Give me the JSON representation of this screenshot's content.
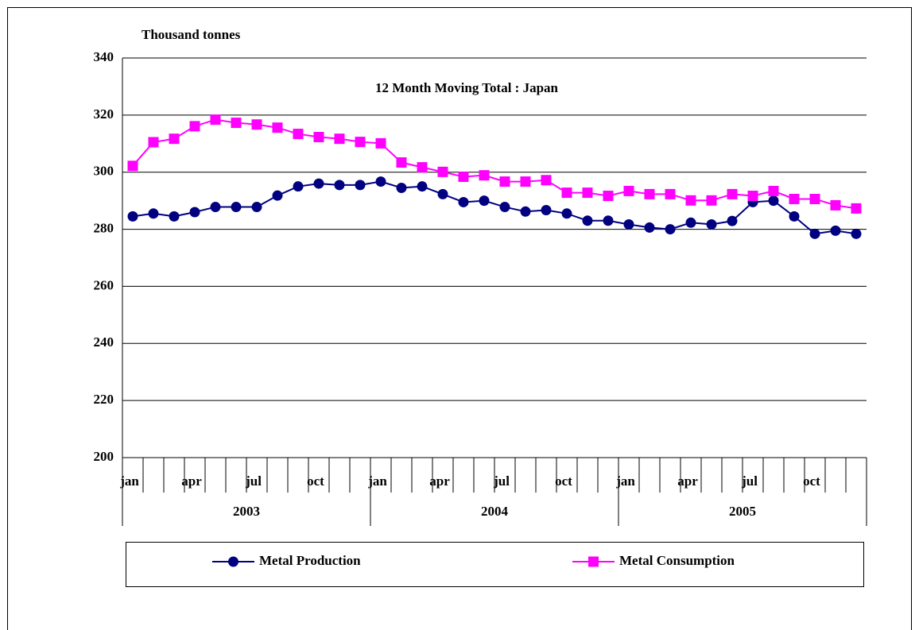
{
  "chart_data": {
    "type": "line",
    "title": "12 Month Moving Total : Japan",
    "y_label": "Thousand tonnes",
    "categories": [
      "jan",
      null,
      null,
      "apr",
      null,
      null,
      "jul",
      null,
      null,
      "oct",
      null,
      null,
      "jan",
      null,
      null,
      "apr",
      null,
      null,
      "jul",
      null,
      null,
      "oct",
      null,
      null,
      "jan",
      null,
      null,
      "apr",
      null,
      null,
      "jul",
      null,
      null,
      "oct",
      null,
      null
    ],
    "category_groups": [
      "2003",
      "2004",
      "2005"
    ],
    "ylim": [
      200,
      340
    ],
    "yticks": [
      200,
      220,
      240,
      260,
      280,
      300,
      320,
      340
    ],
    "grid": true,
    "legend": "bottom",
    "series": [
      {
        "name": "Metal Production",
        "color": "#000080",
        "marker": "circle",
        "values": [
          284.5,
          285.5,
          284.5,
          286,
          287.8,
          287.8,
          287.8,
          291.8,
          295,
          296,
          295.5,
          295.5,
          296.7,
          294.5,
          295,
          292.3,
          289.5,
          290,
          287.8,
          286.2,
          286.7,
          285.5,
          283,
          283,
          281.7,
          280.6,
          280,
          282.3,
          281.7,
          282.9,
          289.5,
          290,
          284.5,
          278.4,
          279.5,
          278.4
        ]
      },
      {
        "name": "Metal Consumption",
        "color": "#ff00ff",
        "marker": "square",
        "values": [
          302.2,
          310.5,
          311.7,
          316.1,
          318.4,
          317.3,
          316.7,
          315.6,
          313.4,
          312.3,
          311.7,
          310.6,
          310.1,
          303.4,
          301.7,
          300.1,
          298.4,
          298.9,
          296.7,
          296.7,
          297.2,
          292.8,
          292.8,
          291.7,
          293.4,
          292.3,
          292.3,
          290.1,
          290.1,
          292.3,
          291.7,
          293.4,
          290.6,
          290.6,
          288.4,
          287.3
        ]
      }
    ]
  }
}
